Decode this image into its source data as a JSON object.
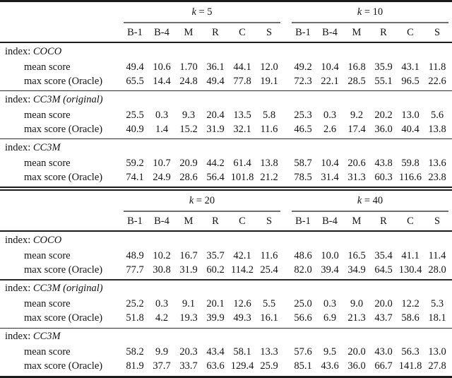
{
  "page": {
    "background": "#ffffff",
    "text_color": "#141414",
    "rule_heavy_color": "#1a1a1a",
    "rule_section_color": "#2b2b2b",
    "rule_group_underline_color": "#6e6e6e"
  },
  "column_headers": [
    "B-1",
    "B-4",
    "M",
    "R",
    "C",
    "S"
  ],
  "tables": [
    {
      "name": "top-half",
      "groups": [
        {
          "var": "k",
          "eq": " = 5"
        },
        {
          "var": "k",
          "eq": " = 10"
        }
      ],
      "sections": [
        {
          "prefix": "index:",
          "name": "COCO",
          "rows": [
            {
              "label": "mean score",
              "values": [
                "49.4",
                "10.6",
                "1.70",
                "36.1",
                "44.1",
                "12.0",
                "49.2",
                "10.4",
                "16.8",
                "35.9",
                "43.1",
                "11.8"
              ]
            },
            {
              "label": "max score (Oracle)",
              "values": [
                "65.5",
                "14.4",
                "24.8",
                "49.4",
                "77.8",
                "19.1",
                "72.3",
                "22.1",
                "28.5",
                "55.1",
                "96.5",
                "22.6"
              ]
            }
          ]
        },
        {
          "prefix": "index:",
          "name": "CC3M (original)",
          "rows": [
            {
              "label": "mean score",
              "values": [
                "25.5",
                "0.3",
                "9.3",
                "20.4",
                "13.5",
                "5.8",
                "25.3",
                "0.3",
                "9.2",
                "20.2",
                "13.0",
                "5.6"
              ]
            },
            {
              "label": "max score (Oracle)",
              "values": [
                "40.9",
                "1.4",
                "15.2",
                "31.9",
                "32.1",
                "11.6",
                "46.5",
                "2.6",
                "17.4",
                "36.0",
                "40.4",
                "13.8"
              ]
            }
          ]
        },
        {
          "prefix": "index:",
          "name": "CC3M",
          "rows": [
            {
              "label": "mean score",
              "values": [
                "59.2",
                "10.7",
                "20.9",
                "44.2",
                "61.4",
                "13.8",
                "58.7",
                "10.4",
                "20.6",
                "43.8",
                "59.8",
                "13.6"
              ]
            },
            {
              "label": "max score (Oracle)",
              "values": [
                "74.1",
                "24.9",
                "28.6",
                "56.4",
                "101.8",
                "21.2",
                "78.5",
                "31.4",
                "31.3",
                "60.3",
                "116.6",
                "23.8"
              ]
            }
          ]
        }
      ]
    },
    {
      "name": "bottom-half",
      "groups": [
        {
          "var": "k",
          "eq": " = 20"
        },
        {
          "var": "k",
          "eq": " = 40"
        }
      ],
      "sections": [
        {
          "prefix": "index:",
          "name": "COCO",
          "rows": [
            {
              "label": "mean score",
              "values": [
                "48.9",
                "10.2",
                "16.7",
                "35.7",
                "42.1",
                "11.6",
                "48.6",
                "10.0",
                "16.5",
                "35.4",
                "41.1",
                "11.4"
              ]
            },
            {
              "label": "max score (Oracle)",
              "values": [
                "77.7",
                "30.8",
                "31.9",
                "60.2",
                "114.2",
                "25.4",
                "82.0",
                "39.4",
                "34.9",
                "64.5",
                "130.4",
                "28.0"
              ]
            }
          ]
        },
        {
          "prefix": "index:",
          "name": "CC3M (original)",
          "rows": [
            {
              "label": "mean score",
              "values": [
                "25.2",
                "0.3",
                "9.1",
                "20.1",
                "12.6",
                "5.5",
                "25.0",
                "0.3",
                "9.0",
                "20.0",
                "12.2",
                "5.3"
              ]
            },
            {
              "label": "max score (Oracle)",
              "values": [
                "51.8",
                "4.2",
                "19.3",
                "39.9",
                "49.3",
                "16.1",
                "56.6",
                "6.9",
                "21.3",
                "43.7",
                "58.6",
                "18.1"
              ]
            }
          ]
        },
        {
          "prefix": "index:",
          "name": "CC3M",
          "rows": [
            {
              "label": "mean score",
              "values": [
                "58.2",
                "9.9",
                "20.3",
                "43.4",
                "58.1",
                "13.3",
                "57.6",
                "9.5",
                "20.0",
                "43.0",
                "56.3",
                "13.0"
              ]
            },
            {
              "label": "max score (Oracle)",
              "values": [
                "81.9",
                "37.7",
                "33.7",
                "63.6",
                "129.4",
                "25.9",
                "85.1",
                "43.6",
                "36.0",
                "66.7",
                "141.8",
                "27.8"
              ]
            }
          ]
        }
      ]
    }
  ]
}
